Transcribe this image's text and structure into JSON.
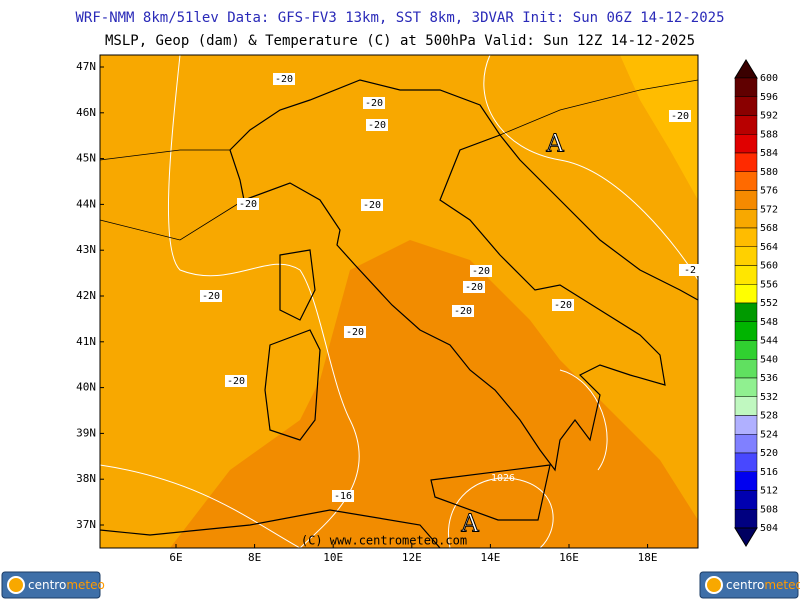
{
  "header": {
    "line1": "WRF-NMM 8km/51lev   Data: GFS-FV3 13km, SST 8km, 3DVAR   Init: Sun 06Z 14-12-2025",
    "line2": "MSLP, Geop (dam) & Temperature (C) at 500hPa  Valid: Sun 12Z 14-12-2025"
  },
  "map": {
    "lat_labels": [
      "47N",
      "46N",
      "45N",
      "44N",
      "43N",
      "42N",
      "41N",
      "40N",
      "39N",
      "38N",
      "37N"
    ],
    "lon_labels": [
      "6E",
      "8E",
      "10E",
      "12E",
      "14E",
      "16E",
      "18E"
    ],
    "contour_labels": [
      "-20",
      "-20",
      "-20",
      "-20",
      "-20",
      "-20",
      "-20",
      "-20",
      "-20",
      "-20",
      "-20",
      "-20",
      "-20",
      "-2",
      "-16"
    ],
    "pressure_labels": [
      "1026"
    ],
    "highs": [
      "A",
      "A"
    ],
    "copyright": "(C) www.centrometeo.com"
  },
  "colorbar": {
    "levels": [
      600,
      596,
      592,
      588,
      584,
      580,
      576,
      572,
      568,
      564,
      560,
      556,
      552,
      548,
      544,
      540,
      536,
      532,
      528,
      524,
      520,
      516,
      512,
      508,
      504
    ],
    "colors": [
      "#3a0000",
      "#600000",
      "#8a0000",
      "#b80000",
      "#e00000",
      "#ff2a00",
      "#ff6a00",
      "#f58a00",
      "#f8a800",
      "#ffbc00",
      "#ffd000",
      "#ffe600",
      "#ffff00",
      "#009a00",
      "#00b400",
      "#30d030",
      "#60e060",
      "#90f090",
      "#c0f8c0",
      "#b0b0ff",
      "#8080ff",
      "#4848ff",
      "#0000f0",
      "#0000b0",
      "#000080",
      "#000060"
    ]
  },
  "logo": {
    "part1": "centro",
    "part2": "meteo"
  }
}
